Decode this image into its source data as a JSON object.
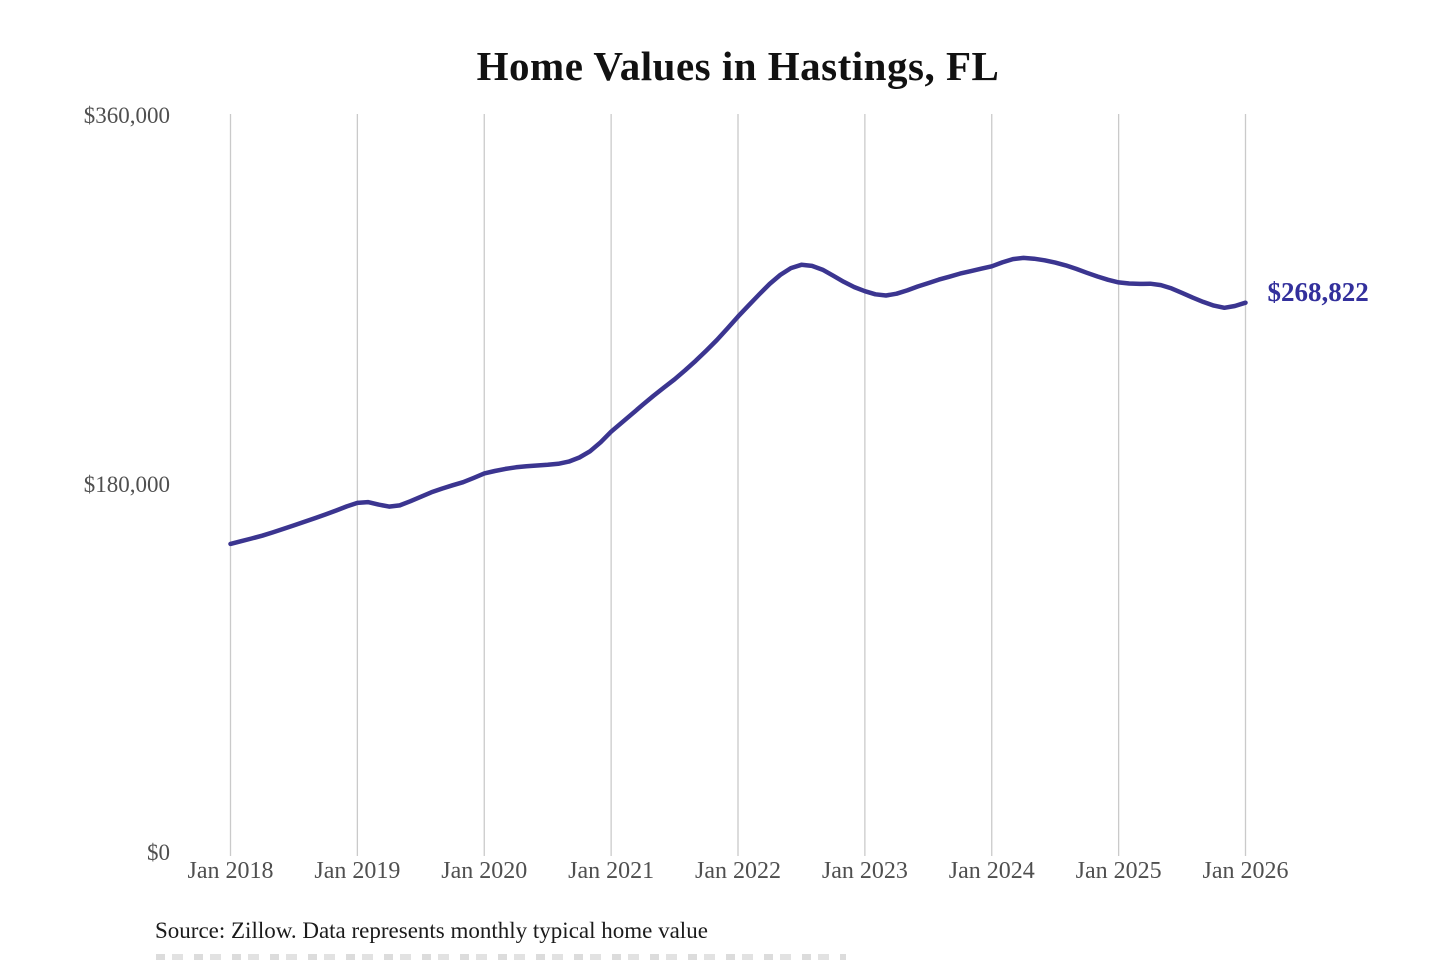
{
  "page": {
    "title": "Home Values in Hastings, FL",
    "source_note": "Source: Zillow. Data represents monthly typical home value",
    "current_value_label": "$268,822"
  },
  "colors": {
    "background": "#ffffff",
    "line": "#3b3590",
    "value_label": "#33309c",
    "grid": "#cacaca",
    "tick_text": "#4f4f4f",
    "title_text": "#111111",
    "note_text": "#1b1b1b"
  },
  "chart_data": {
    "type": "line",
    "title": "Home Values in Hastings, FL",
    "xlabel": "",
    "ylabel": "",
    "x_unit": "month",
    "x_start": "Jan 2018",
    "x_end": "Jan 2026",
    "x_tick_labels": [
      "Jan 2018",
      "Jan 2019",
      "Jan 2020",
      "Jan 2021",
      "Jan 2022",
      "Jan 2023",
      "Jan 2024",
      "Jan 2025",
      "Jan 2026"
    ],
    "y_ticks": [
      0,
      180000,
      360000
    ],
    "y_tick_labels": [
      "$0",
      "$180,000",
      "$360,000"
    ],
    "ylim": [
      0,
      360000
    ],
    "grid": "vertical-only",
    "legend": "none",
    "annotation": {
      "text": "$268,822",
      "value": 268822,
      "position": "line-end"
    },
    "series": [
      {
        "name": "Monthly typical home value",
        "values": [
          151000,
          152300,
          153600,
          155000,
          156600,
          158300,
          160000,
          161800,
          163600,
          165400,
          167300,
          169300,
          171000,
          171400,
          170200,
          169200,
          169800,
          171800,
          174000,
          176200,
          178000,
          179600,
          181100,
          183200,
          185400,
          186600,
          187600,
          188400,
          188900,
          189300,
          189600,
          190100,
          191200,
          193200,
          196200,
          200600,
          205800,
          210200,
          214600,
          219000,
          223300,
          227400,
          231400,
          235800,
          240400,
          245400,
          250600,
          256200,
          262000,
          267500,
          272800,
          278000,
          282400,
          285700,
          287300,
          286800,
          284900,
          282000,
          279000,
          276400,
          274400,
          272900,
          272300,
          273200,
          274800,
          276700,
          278400,
          280100,
          281500,
          283000,
          284200,
          285400,
          286600,
          288500,
          290100,
          290700,
          290300,
          289500,
          288400,
          287000,
          285300,
          283400,
          281600,
          280000,
          278700,
          278200,
          278000,
          278100,
          277400,
          275800,
          273600,
          271300,
          269200,
          267400,
          266300,
          267200,
          268822
        ]
      }
    ]
  }
}
